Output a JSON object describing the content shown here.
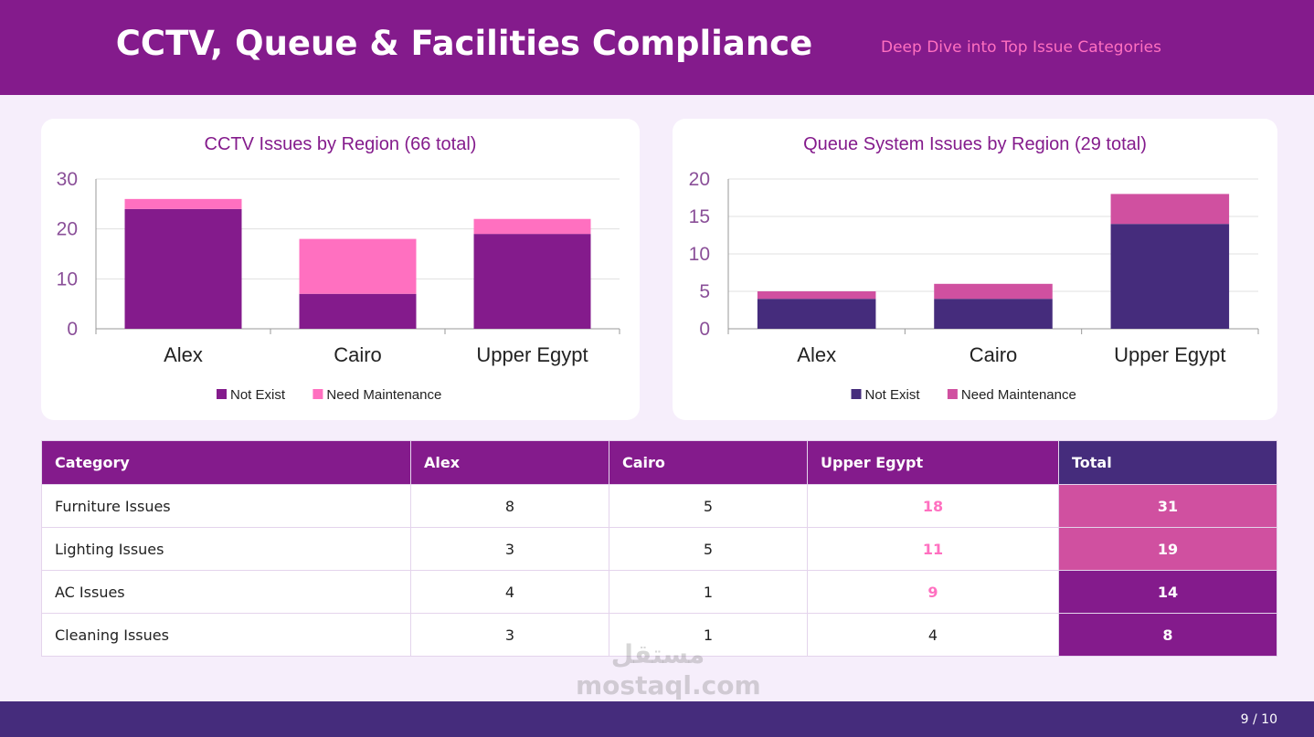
{
  "header": {
    "title": "CCTV, Queue & Facilities Compliance",
    "subtitle": "Deep Dive into Top Issue Categories"
  },
  "chart_data": [
    {
      "type": "bar",
      "stacked": true,
      "title": "CCTV Issues by Region (66 total)",
      "categories": [
        "Alex",
        "Cairo",
        "Upper Egypt"
      ],
      "series": [
        {
          "name": "Not Exist",
          "color": "#841b8c",
          "values": [
            24,
            7,
            19
          ]
        },
        {
          "name": "Need Maintenance",
          "color": "#ff70c0",
          "values": [
            2,
            11,
            3
          ]
        }
      ],
      "ylim": [
        0,
        30
      ],
      "yticks": [
        0,
        10,
        20,
        30
      ],
      "grid": true,
      "legend": "bottom"
    },
    {
      "type": "bar",
      "stacked": true,
      "title": "Queue System Issues by Region (29 total)",
      "categories": [
        "Alex",
        "Cairo",
        "Upper Egypt"
      ],
      "series": [
        {
          "name": "Not Exist",
          "color": "#452c7c",
          "values": [
            4,
            4,
            14
          ]
        },
        {
          "name": "Need Maintenance",
          "color": "#d050a0",
          "values": [
            1,
            2,
            4
          ]
        }
      ],
      "ylim": [
        0,
        20
      ],
      "yticks": [
        0,
        5,
        10,
        15,
        20
      ],
      "grid": true,
      "legend": "bottom"
    }
  ],
  "table": {
    "columns": [
      "Category",
      "Alex",
      "Cairo",
      "Upper Egypt",
      "Total"
    ],
    "rows": [
      [
        "Furniture Issues",
        8,
        5,
        18,
        31
      ],
      [
        "Lighting Issues",
        3,
        5,
        11,
        19
      ],
      [
        "AC Issues",
        4,
        1,
        9,
        14
      ],
      [
        "Cleaning Issues",
        3,
        1,
        4,
        8
      ]
    ]
  },
  "watermark": {
    "logo": "مستقل",
    "site": "mostaql.com"
  },
  "footer": {
    "page": "9 / 10"
  }
}
